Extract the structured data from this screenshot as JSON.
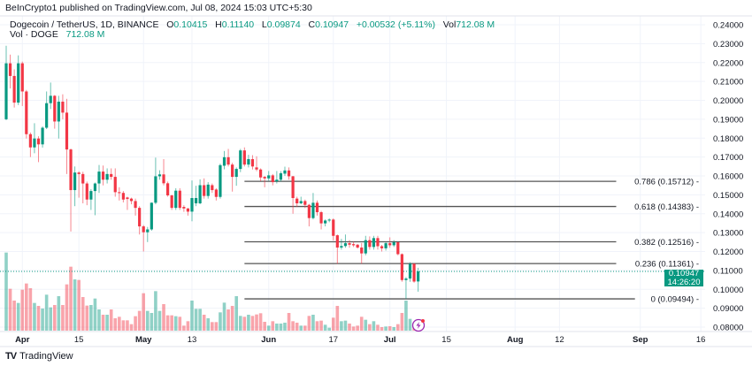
{
  "publisher_line": "BeInCrypto1 published on TradingView.com, Jul 08, 2024 15:03 UTC+5:30",
  "legend": {
    "symbol": "Dogecoin / TetherUS, 1D, BINANCE",
    "o_label": "O",
    "o": "0.10415",
    "h_label": "H",
    "h": "0.11140",
    "l_label": "L",
    "l": "0.09874",
    "c_label": "C",
    "c": "0.10947",
    "change": "+0.00532 (+5.11%)",
    "vol_label": "Vol",
    "vol": "712.08 M",
    "vol_series_label": "Vol · DOGE",
    "vol_series_value": "712.08 M"
  },
  "price_tag": {
    "price": "0.10947",
    "countdown": "14:26:20"
  },
  "logo_text": "TradingView",
  "colors": {
    "up": "#089981",
    "down": "#F23645",
    "fib": "#555555",
    "grid": "#F0F3FA"
  },
  "chart_data": {
    "type": "candlestick",
    "title": "Dogecoin / TetherUS, 1D, BINANCE",
    "first_date": "2024-03-28",
    "ylim": [
      0.075,
      0.245
    ],
    "y_ticks": [
      "0.24000",
      "0.23000",
      "0.22000",
      "0.21000",
      "0.20000",
      "0.19000",
      "0.18000",
      "0.17000",
      "0.16000",
      "0.15000",
      "0.14000",
      "0.13000",
      "0.12000",
      "0.11000",
      "0.10000",
      "0.09000",
      "0.08000"
    ],
    "x_ticks": [
      {
        "label": "Apr",
        "day": 4,
        "bold": true
      },
      {
        "label": "15",
        "day": 18
      },
      {
        "label": "May",
        "day": 34,
        "bold": true
      },
      {
        "label": "13",
        "day": 46
      },
      {
        "label": "Jun",
        "day": 65,
        "bold": true
      },
      {
        "label": "17",
        "day": 81
      },
      {
        "label": "Jul",
        "day": 95,
        "bold": true
      },
      {
        "label": "15",
        "day": 109
      },
      {
        "label": "Aug",
        "day": 126,
        "bold": true
      },
      {
        "label": "12",
        "day": 137
      },
      {
        "label": "Sep",
        "day": 157,
        "bold": true
      },
      {
        "label": "16",
        "day": 172
      }
    ],
    "ohlc": [
      [
        0.19,
        0.2289,
        0.1895,
        0.2196
      ],
      [
        0.2196,
        0.2242,
        0.2063,
        0.2129
      ],
      [
        0.2129,
        0.2164,
        0.1962,
        0.1988
      ],
      [
        0.1988,
        0.2238,
        0.1975,
        0.2196
      ],
      [
        0.2196,
        0.2205,
        0.197,
        0.2047
      ],
      [
        0.2047,
        0.2055,
        0.1798,
        0.1821
      ],
      [
        0.1821,
        0.183,
        0.17,
        0.1751
      ],
      [
        0.1751,
        0.1879,
        0.172,
        0.1798
      ],
      [
        0.1798,
        0.181,
        0.1673,
        0.1767
      ],
      [
        0.1767,
        0.1862,
        0.175,
        0.1855
      ],
      [
        0.1855,
        0.2047,
        0.1848,
        0.1985
      ],
      [
        0.1985,
        0.2094,
        0.1954,
        0.2024
      ],
      [
        0.2024,
        0.2028,
        0.185,
        0.1888
      ],
      [
        0.1888,
        0.2024,
        0.1798,
        0.1993
      ],
      [
        0.1993,
        0.2032,
        0.19,
        0.1935
      ],
      [
        0.1935,
        0.2008,
        0.161,
        0.174
      ],
      [
        0.174,
        0.1745,
        0.1306,
        0.1525
      ],
      [
        0.1525,
        0.165,
        0.144,
        0.1618
      ],
      [
        0.1618,
        0.1625,
        0.1485,
        0.161
      ],
      [
        0.161,
        0.1622,
        0.1455,
        0.156
      ],
      [
        0.156,
        0.157,
        0.1445,
        0.1475
      ],
      [
        0.1475,
        0.153,
        0.142,
        0.152
      ],
      [
        0.152,
        0.1565,
        0.1392,
        0.156
      ],
      [
        0.156,
        0.1658,
        0.151,
        0.1623
      ],
      [
        0.1623,
        0.1655,
        0.155,
        0.158
      ],
      [
        0.158,
        0.164,
        0.156,
        0.161
      ],
      [
        0.161,
        0.164,
        0.158,
        0.1595
      ],
      [
        0.1595,
        0.164,
        0.149,
        0.1514
      ],
      [
        0.1514,
        0.154,
        0.147,
        0.1509
      ],
      [
        0.151,
        0.152,
        0.146,
        0.1475
      ],
      [
        0.1486,
        0.149,
        0.142,
        0.1478
      ],
      [
        0.148,
        0.1485,
        0.145,
        0.1467
      ],
      [
        0.1467,
        0.148,
        0.139,
        0.1431
      ],
      [
        0.1431,
        0.144,
        0.129,
        0.1333
      ],
      [
        0.1333,
        0.134,
        0.12,
        0.1302
      ],
      [
        0.1302,
        0.133,
        0.125,
        0.1317
      ],
      [
        0.1317,
        0.146,
        0.131,
        0.1458
      ],
      [
        0.1458,
        0.1697,
        0.145,
        0.1598
      ],
      [
        0.1598,
        0.163,
        0.158,
        0.1608
      ],
      [
        0.1608,
        0.1689,
        0.155,
        0.1561
      ],
      [
        0.1561,
        0.157,
        0.149,
        0.1497
      ],
      [
        0.1497,
        0.15,
        0.142,
        0.1431
      ],
      [
        0.1431,
        0.1535,
        0.142,
        0.1522
      ],
      [
        0.1522,
        0.1535,
        0.142,
        0.1431
      ],
      [
        0.1436,
        0.1445,
        0.141,
        0.1428
      ],
      [
        0.1428,
        0.143,
        0.139,
        0.1411
      ],
      [
        0.1411,
        0.1576,
        0.136,
        0.1483
      ],
      [
        0.1455,
        0.1548,
        0.144,
        0.1483
      ],
      [
        0.1455,
        0.1582,
        0.145,
        0.1551
      ],
      [
        0.1551,
        0.1587,
        0.148,
        0.1494
      ],
      [
        0.1494,
        0.1567,
        0.148,
        0.1554
      ],
      [
        0.1551,
        0.156,
        0.151,
        0.1525
      ],
      [
        0.1528,
        0.1535,
        0.147,
        0.1489
      ],
      [
        0.1489,
        0.1665,
        0.148,
        0.1657
      ],
      [
        0.1654,
        0.1732,
        0.1635,
        0.1699
      ],
      [
        0.1699,
        0.1743,
        0.165,
        0.166
      ],
      [
        0.166,
        0.167,
        0.1517,
        0.1595
      ],
      [
        0.1595,
        0.1645,
        0.1548,
        0.1637
      ],
      [
        0.1637,
        0.1743,
        0.162,
        0.1735
      ],
      [
        0.1735,
        0.1751,
        0.165,
        0.166
      ],
      [
        0.166,
        0.1712,
        0.1645,
        0.1689
      ],
      [
        0.1689,
        0.171,
        0.1634,
        0.165
      ],
      [
        0.1645,
        0.1704,
        0.1625,
        0.1634
      ],
      [
        0.1634,
        0.164,
        0.1572,
        0.1592
      ],
      [
        0.1595,
        0.16,
        0.154,
        0.1587
      ],
      [
        0.1587,
        0.1626,
        0.1575,
        0.1603
      ],
      [
        0.1603,
        0.161,
        0.155,
        0.1567
      ],
      [
        0.1572,
        0.1626,
        0.156,
        0.158
      ],
      [
        0.158,
        0.1625,
        0.157,
        0.1614
      ],
      [
        0.1612,
        0.1649,
        0.16,
        0.1629
      ],
      [
        0.1629,
        0.1645,
        0.158,
        0.1598
      ],
      [
        0.1598,
        0.16,
        0.14,
        0.1483
      ],
      [
        0.148,
        0.149,
        0.1436,
        0.1455
      ],
      [
        0.1455,
        0.149,
        0.145,
        0.1467
      ],
      [
        0.1467,
        0.1475,
        0.143,
        0.1447
      ],
      [
        0.1447,
        0.1452,
        0.1333,
        0.1377
      ],
      [
        0.1377,
        0.151,
        0.137,
        0.1458
      ],
      [
        0.1458,
        0.147,
        0.139,
        0.1408
      ],
      [
        0.1408,
        0.1415,
        0.1317,
        0.1349
      ],
      [
        0.1349,
        0.137,
        0.1333,
        0.1364
      ],
      [
        0.1364,
        0.1375,
        0.1355,
        0.1369
      ],
      [
        0.1369,
        0.1375,
        0.1259,
        0.1283
      ],
      [
        0.1286,
        0.129,
        0.1135,
        0.1221
      ],
      [
        0.1221,
        0.1267,
        0.121,
        0.1229
      ],
      [
        0.1229,
        0.129,
        0.122,
        0.1244
      ],
      [
        0.1244,
        0.126,
        0.122,
        0.1236
      ],
      [
        0.1239,
        0.1252,
        0.1224,
        0.1233
      ],
      [
        0.1236,
        0.124,
        0.1215,
        0.1221
      ],
      [
        0.1221,
        0.1245,
        0.1135,
        0.119
      ],
      [
        0.119,
        0.1283,
        0.118,
        0.126
      ],
      [
        0.126,
        0.128,
        0.121,
        0.1224
      ],
      [
        0.1224,
        0.1283,
        0.121,
        0.1271
      ],
      [
        0.1271,
        0.1283,
        0.121,
        0.1228
      ],
      [
        0.1228,
        0.1235,
        0.12,
        0.1217
      ],
      [
        0.1217,
        0.125,
        0.1205,
        0.1244
      ],
      [
        0.1244,
        0.1275,
        0.122,
        0.1233
      ],
      [
        0.1233,
        0.126,
        0.1224,
        0.1249
      ],
      [
        0.1249,
        0.125,
        0.118,
        0.1186
      ],
      [
        0.1186,
        0.119,
        0.104,
        0.1049
      ],
      [
        0.1049,
        0.1065,
        0.0949,
        0.1057
      ],
      [
        0.1057,
        0.1143,
        0.104,
        0.1135
      ],
      [
        0.1135,
        0.1138,
        0.1035,
        0.1041
      ],
      [
        0.10415,
        0.1114,
        0.09874,
        0.10947
      ]
    ],
    "volume_rel": [
      265,
      142,
      102,
      94,
      139,
      160,
      144,
      94,
      84,
      75,
      122,
      79,
      87,
      117,
      87,
      157,
      217,
      174,
      172,
      114,
      85,
      87,
      109,
      72,
      54,
      54,
      72,
      42,
      47,
      35,
      35,
      22,
      49,
      67,
      127,
      67,
      60,
      134,
      67,
      90,
      52,
      52,
      49,
      47,
      17,
      32,
      102,
      74,
      74,
      54,
      42,
      29,
      29,
      62,
      95,
      72,
      84,
      117,
      50,
      47,
      54,
      50,
      55,
      59,
      30,
      17,
      32,
      24,
      24,
      27,
      60,
      32,
      27,
      17,
      17,
      50,
      54,
      32,
      34,
      20,
      10,
      44,
      84,
      32,
      34,
      24,
      14,
      17,
      47,
      37,
      22,
      32,
      20,
      12,
      14,
      15,
      12,
      22,
      60,
      102,
      40,
      22,
      12
    ],
    "fib_levels": [
      {
        "label": "0.786 (0.15712)",
        "price": 0.15712
      },
      {
        "label": "0.618 (0.14383)",
        "price": 0.14383
      },
      {
        "label": "0.382 (0.12516)",
        "price": 0.12516
      },
      {
        "label": "0.236 (0.11361)",
        "price": 0.11361
      },
      {
        "label": "0 (0.09494)",
        "price": 0.09494
      }
    ],
    "fib_start_day": 59,
    "last_price": 0.10947
  }
}
